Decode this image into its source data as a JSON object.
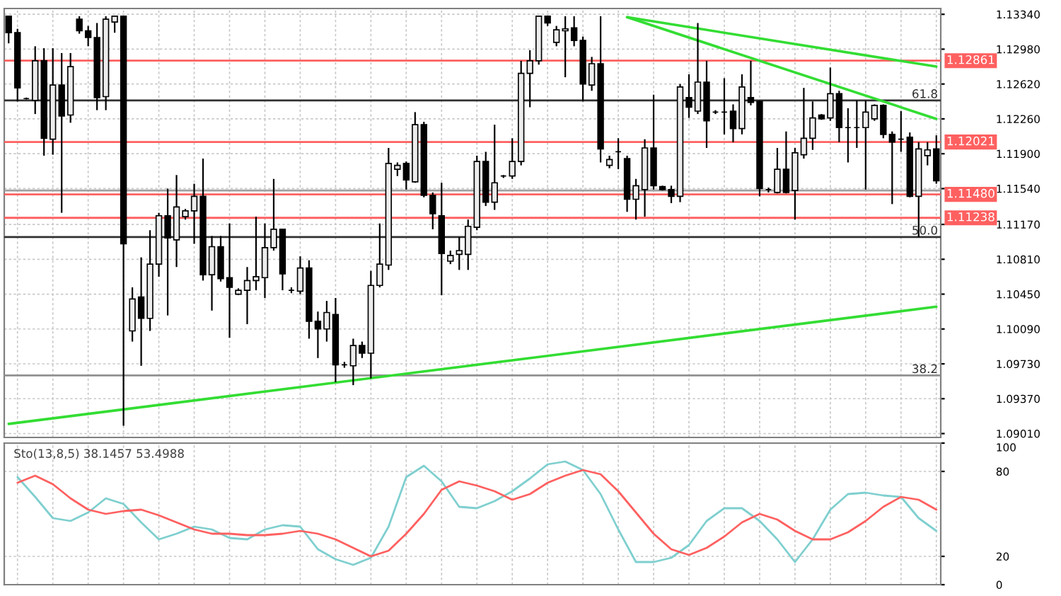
{
  "chart_data": [
    {
      "type": "candlestick",
      "categories": [
        null,
        null,
        null,
        null,
        null,
        null,
        null,
        null,
        null,
        null,
        null,
        null,
        null,
        null,
        null,
        null,
        null,
        null,
        null,
        null,
        null,
        null,
        null,
        null,
        null,
        null,
        null,
        null,
        null,
        null,
        null,
        null,
        null,
        null,
        null,
        null,
        null,
        null,
        null,
        null,
        null,
        null,
        null,
        null,
        null,
        null,
        null,
        null,
        null,
        null,
        null,
        null,
        null,
        null,
        null,
        null,
        null,
        null,
        null,
        null,
        null,
        null,
        null,
        null,
        null,
        null,
        null,
        null,
        null,
        null,
        null,
        null,
        null,
        null,
        null,
        null,
        null,
        null,
        null,
        null,
        null,
        null,
        null,
        null,
        null,
        null,
        null,
        null,
        null,
        null,
        null,
        null,
        null,
        null,
        null,
        null,
        null,
        null,
        null,
        null,
        null,
        null,
        null,
        null,
        null,
        null
      ],
      "ohlc": [
        [
          1.1332,
          1.1332,
          1.1304,
          1.1315
        ],
        [
          1.1315,
          1.1319,
          1.1244,
          1.1258
        ],
        [
          1.1247,
          1.1248,
          1.1246,
          1.1247
        ],
        [
          1.1245,
          1.1301,
          1.1231,
          1.1286
        ],
        [
          1.1286,
          1.1299,
          1.1188,
          1.1206
        ],
        [
          1.1205,
          1.1299,
          1.1189,
          1.1261
        ],
        [
          1.1261,
          1.1294,
          1.1129,
          1.1229
        ],
        [
          1.123,
          1.1294,
          1.1222,
          1.128
        ],
        [
          1.1329,
          1.1332,
          1.1314,
          1.1317
        ],
        [
          1.1317,
          1.1322,
          1.1301,
          1.131
        ],
        [
          1.131,
          1.1325,
          1.1235,
          1.1248
        ],
        [
          1.1249,
          1.1332,
          1.1235,
          1.1329
        ],
        [
          1.1326,
          1.1332,
          1.1315,
          1.1332
        ],
        [
          1.1332,
          1.1332,
          1.0909,
          1.1097
        ],
        [
          1.1007,
          1.1052,
          1.0996,
          1.104
        ],
        [
          1.1042,
          1.1083,
          1.0971,
          1.102
        ],
        [
          1.102,
          1.1111,
          1.1007,
          1.1076
        ],
        [
          1.1076,
          1.1129,
          1.1063,
          1.1126
        ],
        [
          1.1126,
          1.1154,
          1.1023,
          1.1103
        ],
        [
          1.1101,
          1.1168,
          1.1073,
          1.1135
        ],
        [
          1.1125,
          1.1133,
          1.1122,
          1.1131
        ],
        [
          1.1131,
          1.1159,
          1.1097,
          1.1146
        ],
        [
          1.1146,
          1.1185,
          1.1059,
          1.1065
        ],
        [
          1.1065,
          1.1105,
          1.1028,
          1.1094
        ],
        [
          1.1094,
          1.1105,
          1.1058,
          1.1061
        ],
        [
          1.1062,
          1.1118,
          1.1,
          1.1052
        ],
        [
          1.1045,
          1.1051,
          1.1044,
          1.1049
        ],
        [
          1.1049,
          1.1073,
          1.1014,
          1.1059
        ],
        [
          1.1059,
          1.1125,
          1.1049,
          1.1063
        ],
        [
          1.1062,
          1.1118,
          1.1041,
          1.1093
        ],
        [
          1.1093,
          1.1164,
          1.109,
          1.1112
        ],
        [
          1.1112,
          1.1112,
          1.1049,
          1.1066
        ],
        [
          1.1049,
          1.1052,
          1.1046,
          1.1049
        ],
        [
          1.1048,
          1.1084,
          1.1045,
          1.1072
        ],
        [
          1.1072,
          1.108,
          1.0999,
          1.1017
        ],
        [
          1.1017,
          1.1027,
          1.0979,
          1.1009
        ],
        [
          1.1009,
          1.1038,
          1.0996,
          1.1026
        ],
        [
          1.1024,
          1.1041,
          1.0954,
          1.0972
        ],
        [
          1.0972,
          1.0975,
          1.0969,
          1.0972
        ],
        [
          1.0971,
          1.0999,
          1.0951,
          1.0992
        ],
        [
          1.0992,
          1.0996,
          1.0979,
          1.0984
        ],
        [
          1.0984,
          1.1069,
          1.0958,
          1.1054
        ],
        [
          1.1054,
          1.1118,
          1.1052,
          1.1076
        ],
        [
          1.1075,
          1.1196,
          1.107,
          1.118
        ],
        [
          1.1174,
          1.1181,
          1.1167,
          1.1178
        ],
        [
          1.118,
          1.1182,
          1.1153,
          1.1163
        ],
        [
          1.1161,
          1.1233,
          1.116,
          1.122
        ],
        [
          1.122,
          1.1223,
          1.1145,
          1.1147
        ],
        [
          1.1147,
          1.115,
          1.1112,
          1.1128
        ],
        [
          1.1126,
          1.116,
          1.1044,
          1.1087
        ],
        [
          1.1079,
          1.109,
          1.1076,
          1.1085
        ],
        [
          1.1086,
          1.1104,
          1.107,
          1.109
        ],
        [
          1.1086,
          1.1122,
          1.107,
          1.1115
        ],
        [
          1.1114,
          1.1188,
          1.1111,
          1.1182
        ],
        [
          1.1182,
          1.1192,
          1.1136,
          1.114
        ],
        [
          1.114,
          1.122,
          1.1132,
          1.116
        ],
        [
          1.1167,
          1.1168,
          1.1165,
          1.1167
        ],
        [
          1.1167,
          1.1206,
          1.1164,
          1.1182
        ],
        [
          1.1182,
          1.1286,
          1.1178,
          1.1273
        ],
        [
          1.1273,
          1.1297,
          1.1238,
          1.1286
        ],
        [
          1.1286,
          1.1332,
          1.1282,
          1.1332
        ],
        [
          1.1332,
          1.1332,
          1.1322,
          1.1325
        ],
        [
          1.1305,
          1.1322,
          1.1301,
          1.1318
        ],
        [
          1.1317,
          1.1332,
          1.1269,
          1.1319
        ],
        [
          1.132,
          1.1332,
          1.1301,
          1.1307
        ],
        [
          1.1307,
          1.1311,
          1.1244,
          1.1262
        ],
        [
          1.1261,
          1.129,
          1.1255,
          1.1283
        ],
        [
          1.1283,
          1.1332,
          1.1181,
          1.1195
        ],
        [
          1.1178,
          1.1188,
          1.1175,
          1.1184
        ],
        [
          1.1192,
          1.1206,
          1.1174,
          1.1192
        ],
        [
          1.1185,
          1.1188,
          1.113,
          1.1143
        ],
        [
          1.1143,
          1.1164,
          1.1122,
          1.1157
        ],
        [
          1.1153,
          1.1205,
          1.1125,
          1.1196
        ],
        [
          1.1196,
          1.1251,
          1.1153,
          1.1157
        ],
        [
          1.1156,
          1.1157,
          1.1152,
          1.1153
        ],
        [
          1.1153,
          1.1157,
          1.1139,
          1.1146
        ],
        [
          1.1146,
          1.1262,
          1.114,
          1.1259
        ],
        [
          1.1248,
          1.1272,
          1.1227,
          1.1238
        ],
        [
          1.1234,
          1.1325,
          1.1231,
          1.1264
        ],
        [
          1.1264,
          1.1286,
          1.1196,
          1.1224
        ],
        [
          1.1233,
          1.1235,
          1.1231,
          1.1233
        ],
        [
          1.1233,
          1.1268,
          1.121,
          1.1233
        ],
        [
          1.1234,
          1.1241,
          1.1202,
          1.1216
        ],
        [
          1.1216,
          1.1272,
          1.121,
          1.1259
        ],
        [
          1.1248,
          1.1286,
          1.124,
          1.1243
        ],
        [
          1.1244,
          1.1245,
          1.1146,
          1.1154
        ],
        [
          1.1153,
          1.1155,
          1.115,
          1.1153
        ],
        [
          1.115,
          1.1196,
          1.1149,
          1.1174
        ],
        [
          1.1174,
          1.1213,
          1.1149,
          1.115
        ],
        [
          1.1152,
          1.1196,
          1.1122,
          1.1191
        ],
        [
          1.1189,
          1.1258,
          1.1185,
          1.1206
        ],
        [
          1.1206,
          1.1244,
          1.1194,
          1.1227
        ],
        [
          1.123,
          1.1231,
          1.1225,
          1.1226
        ],
        [
          1.1227,
          1.1279,
          1.1224,
          1.1252
        ],
        [
          1.1252,
          1.1255,
          1.1202,
          1.1217
        ],
        [
          1.1217,
          1.1237,
          1.1181,
          1.1217
        ],
        [
          1.1217,
          1.1245,
          1.1196,
          1.1217
        ],
        [
          1.1217,
          1.1245,
          1.1153,
          1.1233
        ],
        [
          1.1226,
          1.1241,
          1.1224,
          1.124
        ],
        [
          1.124,
          1.1241,
          1.1206,
          1.121
        ],
        [
          1.121,
          1.1213,
          1.1138,
          1.1202
        ],
        [
          1.1205,
          1.1234,
          1.1192,
          1.1205
        ],
        [
          1.1207,
          1.1212,
          1.1145,
          1.1146
        ],
        [
          1.1146,
          1.1202,
          1.1104,
          1.1195
        ],
        [
          1.1188,
          1.1202,
          1.1178,
          1.1194
        ],
        [
          1.1195,
          1.1209,
          1.1159,
          1.1162
        ]
      ],
      "series": [
        {
          "type": "line",
          "color": "#33dd33",
          "values": [
            1.0911,
            null,
            null,
            null,
            null,
            null,
            null,
            null,
            null,
            null,
            null,
            null,
            null,
            null,
            null,
            null,
            null,
            null,
            null,
            null,
            null,
            null,
            null,
            null,
            null,
            null,
            null,
            null,
            null,
            null,
            null,
            null,
            null,
            null,
            null,
            null,
            null,
            null,
            null,
            null,
            null,
            null,
            null,
            null,
            null,
            null,
            null,
            null,
            null,
            null,
            null,
            null,
            null,
            null,
            null,
            null,
            null,
            null,
            null,
            null,
            null,
            null,
            null,
            null,
            null,
            null,
            null,
            null,
            null,
            null,
            null,
            null,
            null,
            null,
            null,
            null,
            null,
            null,
            null,
            null,
            null,
            null,
            null,
            null,
            null,
            null,
            null,
            null,
            null,
            null,
            null,
            null,
            null,
            null,
            null,
            null,
            null,
            null,
            null,
            null,
            null,
            null,
            null,
            null,
            null,
            1.1032
          ]
        },
        {
          "type": "line",
          "color": "#33dd33",
          "values": [
            null,
            null,
            null,
            null,
            null,
            null,
            null,
            null,
            null,
            null,
            null,
            null,
            null,
            null,
            null,
            null,
            null,
            null,
            null,
            null,
            null,
            null,
            null,
            null,
            null,
            null,
            null,
            null,
            null,
            null,
            null,
            null,
            null,
            null,
            null,
            null,
            null,
            null,
            null,
            null,
            null,
            null,
            null,
            null,
            null,
            null,
            null,
            null,
            null,
            null,
            null,
            null,
            null,
            null,
            null,
            null,
            null,
            null,
            null,
            null,
            null,
            null,
            null,
            null,
            null,
            null,
            null,
            null,
            null,
            null,
            1.1331,
            null,
            null,
            null,
            null,
            null,
            null,
            null,
            null,
            null,
            null,
            null,
            null,
            null,
            null,
            null,
            null,
            null,
            null,
            null,
            null,
            null,
            null,
            null,
            null,
            null,
            null,
            null,
            null,
            null,
            null,
            null,
            null,
            null,
            null,
            1.128
          ]
        },
        {
          "type": "line",
          "color": "#33dd33",
          "values": [
            null,
            null,
            null,
            null,
            null,
            null,
            null,
            null,
            null,
            null,
            null,
            null,
            null,
            null,
            null,
            null,
            null,
            null,
            null,
            null,
            null,
            null,
            null,
            null,
            null,
            null,
            null,
            null,
            null,
            null,
            null,
            null,
            null,
            null,
            null,
            null,
            null,
            null,
            null,
            null,
            null,
            null,
            null,
            null,
            null,
            null,
            null,
            null,
            null,
            null,
            null,
            null,
            null,
            null,
            null,
            null,
            null,
            null,
            null,
            null,
            null,
            null,
            null,
            null,
            null,
            null,
            null,
            null,
            null,
            null,
            1.1331,
            null,
            null,
            null,
            null,
            null,
            null,
            null,
            null,
            null,
            null,
            null,
            null,
            null,
            null,
            null,
            null,
            null,
            null,
            null,
            null,
            null,
            null,
            null,
            null,
            null,
            null,
            null,
            null,
            null,
            null,
            null,
            null,
            null,
            null,
            1.1226
          ]
        }
      ],
      "ref_lines": [
        {
          "axis": "y",
          "value": 1.12861,
          "label": "1.12861",
          "color": "#ff6060"
        },
        {
          "axis": "y",
          "value": 1.12021,
          "label": "1.12021",
          "color": "#ff6060"
        },
        {
          "axis": "y",
          "value": 1.1148,
          "label": "1.11480",
          "color": "#ff6060"
        },
        {
          "axis": "y",
          "value": 1.11238,
          "label": "1.11238",
          "color": "#ff6060"
        },
        {
          "axis": "y",
          "value": 1.1152,
          "color": "#a0a0a0"
        },
        {
          "axis": "y",
          "value": 1.1245,
          "color": "#303030"
        },
        {
          "axis": "y",
          "value": 1.1104,
          "color": "#303030"
        },
        {
          "axis": "y",
          "value": 1.0961,
          "color": "#909090"
        }
      ],
      "annotations": [
        {
          "text": "61.8",
          "y": 1.1245
        },
        {
          "text": "50.0",
          "y": 1.1104
        },
        {
          "text": "38.2",
          "y": 1.0961
        }
      ],
      "ylim": [
        1.0897,
        1.134
      ],
      "yticks": [
        {
          "value": 1.0901,
          "label": "1.09010"
        },
        {
          "value": 1.0937,
          "label": "1.09370"
        },
        {
          "value": 1.0973,
          "label": "1.09730"
        },
        {
          "value": 1.1009,
          "label": "1.10090"
        },
        {
          "value": 1.1045,
          "label": "1.10450"
        },
        {
          "value": 1.1081,
          "label": "1.10810"
        },
        {
          "value": 1.1117,
          "label": "1.11170"
        },
        {
          "value": 1.1154,
          "label": "1.11540"
        },
        {
          "value": 1.119,
          "label": "1.11900"
        },
        {
          "value": 1.1226,
          "label": "1.12260"
        },
        {
          "value": 1.1262,
          "label": "1.12620"
        },
        {
          "value": 1.1298,
          "label": "1.12980"
        },
        {
          "value": 1.1334,
          "label": "1.13340"
        }
      ],
      "grid": true
    },
    {
      "type": "line",
      "title": "Sto(13,8,5) 38.1457 53.4988",
      "categories": [
        null,
        null,
        null,
        null,
        null,
        null,
        null,
        null,
        null,
        null,
        null,
        null,
        null,
        null,
        null,
        null,
        null,
        null,
        null,
        null,
        null,
        null,
        null,
        null,
        null,
        null,
        null,
        null,
        null,
        null,
        null,
        null,
        null,
        null,
        null,
        null,
        null,
        null,
        null,
        null,
        null,
        null,
        null,
        null,
        null,
        null,
        null,
        null,
        null,
        null,
        null,
        null,
        null
      ],
      "series": [
        {
          "color": "#7fcfcf",
          "values": [
            76,
            62,
            47,
            45,
            51,
            61,
            57,
            44,
            32,
            36,
            41,
            39,
            33,
            32,
            39,
            42,
            41,
            25,
            18,
            14,
            19,
            41,
            76,
            84,
            73,
            55,
            54,
            59,
            66,
            75,
            85,
            87,
            81,
            64,
            39,
            16,
            16,
            19,
            28,
            45,
            54,
            54,
            45,
            32,
            16,
            32,
            53,
            64,
            65,
            63,
            62,
            47,
            38
          ]
        },
        {
          "color": "#ff6060",
          "values": [
            72,
            77,
            71,
            61,
            53,
            50,
            52,
            53,
            49,
            44,
            39,
            36,
            36,
            35,
            35,
            36,
            38,
            36,
            32,
            26,
            20,
            24,
            36,
            50,
            67,
            73,
            70,
            66,
            60,
            64,
            72,
            77,
            81,
            78,
            66,
            51,
            36,
            25,
            21,
            26,
            34,
            44,
            50,
            46,
            38,
            32,
            32,
            37,
            45,
            55,
            62,
            60,
            53
          ]
        }
      ],
      "ylim": [
        0,
        100
      ],
      "yticks": [
        0,
        20,
        80,
        100
      ],
      "grid": true
    }
  ]
}
